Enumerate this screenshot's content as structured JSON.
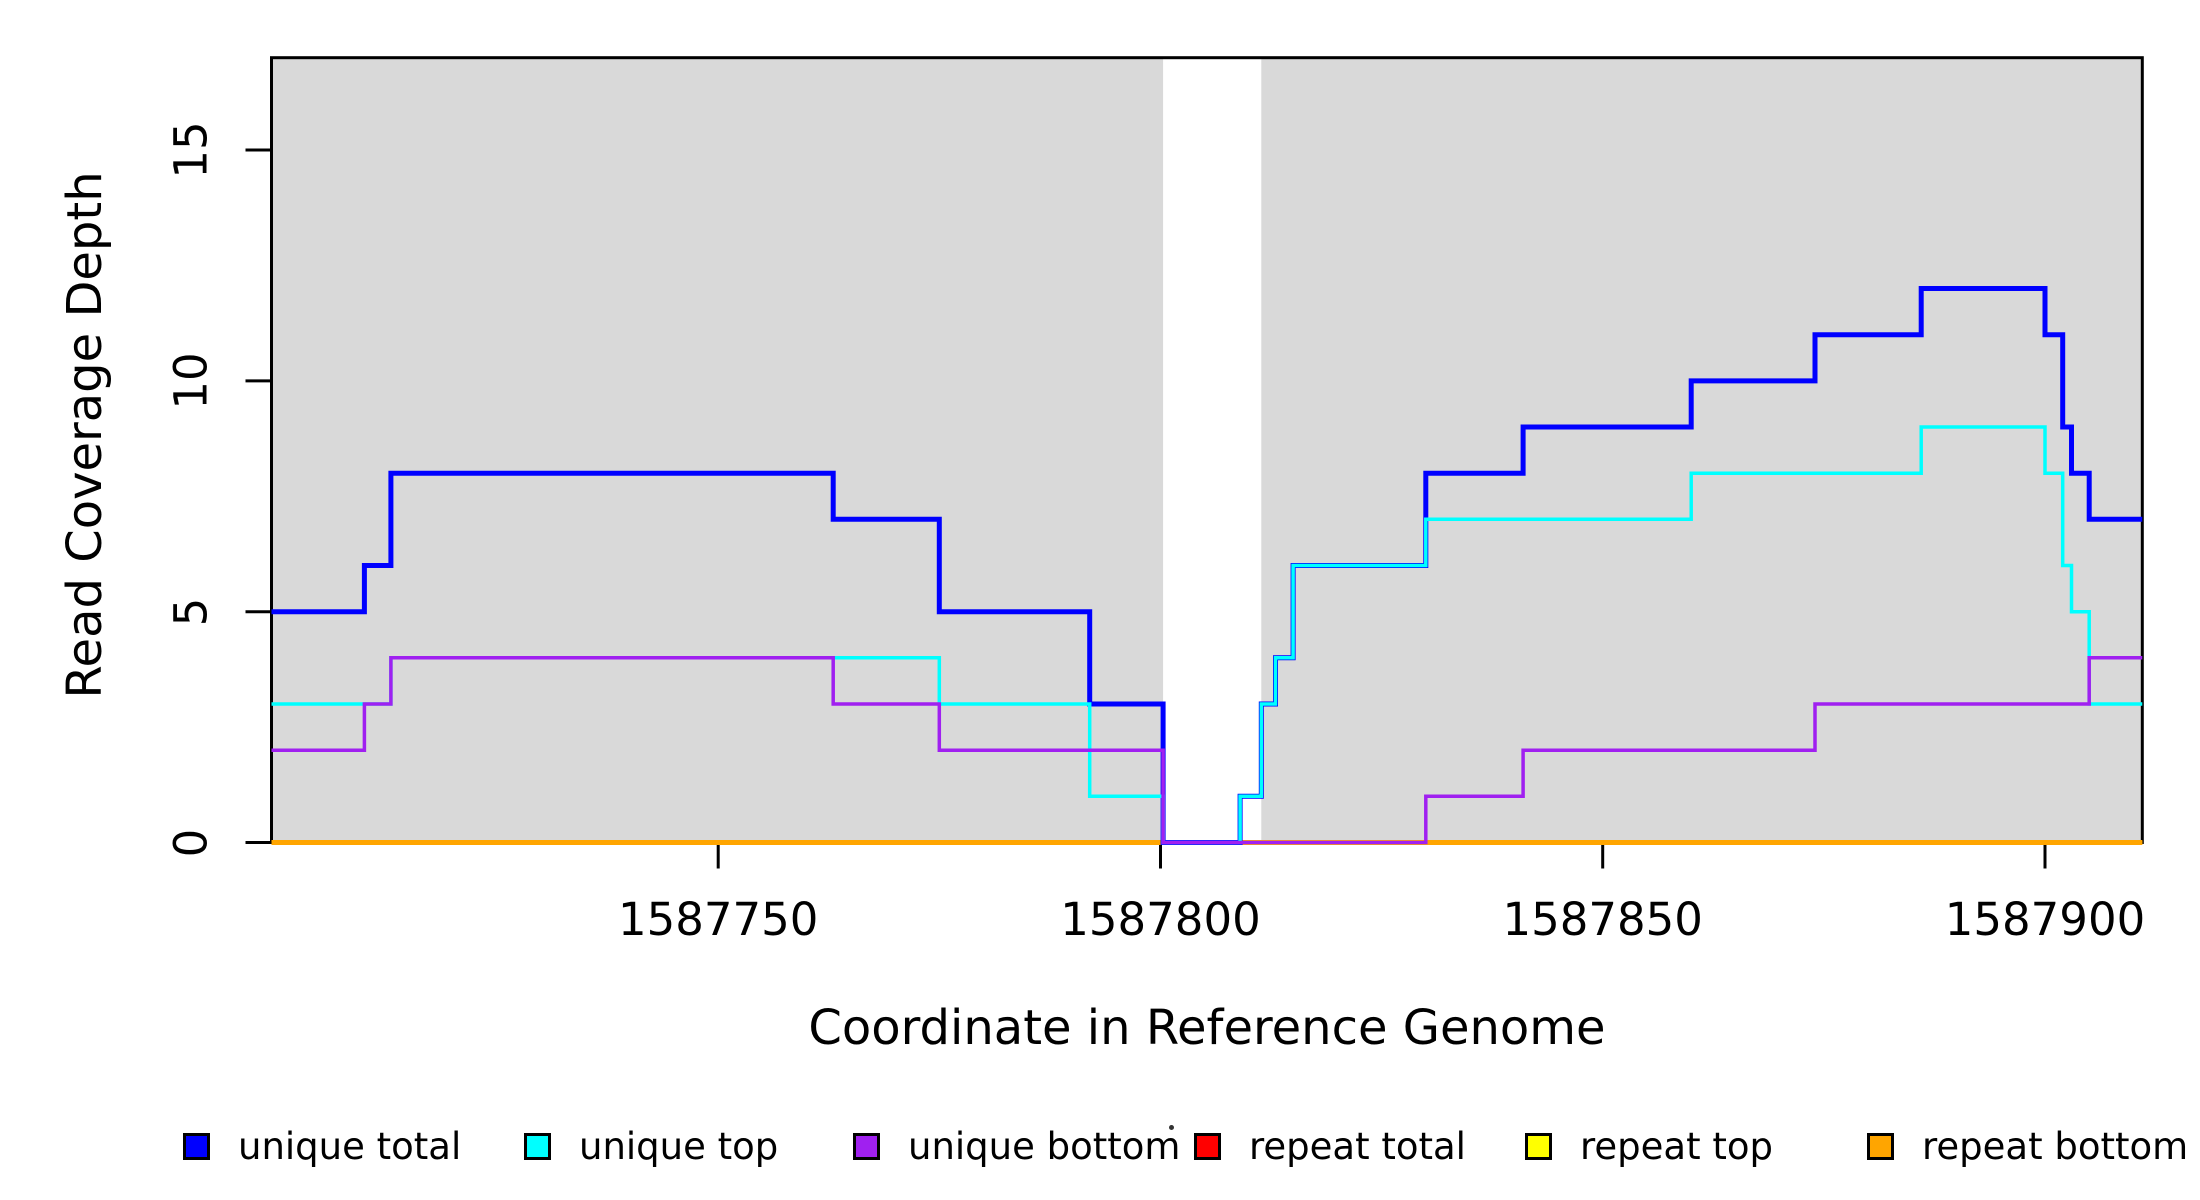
{
  "chart_data": {
    "type": "step",
    "title": "",
    "xlabel": "Coordinate in Reference Genome",
    "ylabel": "Read Coverage Depth",
    "xlim": [
      1587699.5,
      1587911
    ],
    "ylim": [
      0,
      17
    ],
    "grid": false,
    "xticks": [
      {
        "value": 1587750,
        "label": "1587750"
      },
      {
        "value": 1587800,
        "label": "1587800"
      },
      {
        "value": 1587850,
        "label": "1587850"
      },
      {
        "value": 1587900,
        "label": "1587900"
      }
    ],
    "yticks": [
      {
        "value": 0,
        "label": "0"
      },
      {
        "value": 5,
        "label": "5"
      },
      {
        "value": 10,
        "label": "10"
      },
      {
        "value": 15,
        "label": "15"
      }
    ],
    "shaded_regions": [
      {
        "x0": 1587699.5,
        "x1": 1587800.3,
        "color": "#D9D9D9"
      },
      {
        "x0": 1587811.4,
        "x1": 1587911.0,
        "color": "#D9D9D9"
      }
    ],
    "series": [
      {
        "name": "repeat total",
        "color": "#FF0000",
        "line_width": 3.5,
        "steps": [
          [
            1587699.5,
            0
          ]
        ]
      },
      {
        "name": "repeat top",
        "color": "#FFFF00",
        "line_width": 3.5,
        "steps": [
          [
            1587699.5,
            0
          ]
        ]
      },
      {
        "name": "repeat bottom",
        "color": "#FFA500",
        "line_width": 5,
        "steps": [
          [
            1587699.5,
            0
          ]
        ]
      },
      {
        "name": "unique total",
        "color": "#0000FF",
        "line_width": 5,
        "steps": [
          [
            1587699.5,
            5
          ],
          [
            1587710,
            6
          ],
          [
            1587713,
            8
          ],
          [
            1587763,
            7
          ],
          [
            1587775,
            5
          ],
          [
            1587792,
            3
          ],
          [
            1587800.3,
            0
          ],
          [
            1587809,
            1
          ],
          [
            1587811.4,
            3
          ],
          [
            1587813,
            4
          ],
          [
            1587815,
            6
          ],
          [
            1587830,
            8
          ],
          [
            1587841,
            9
          ],
          [
            1587860,
            10
          ],
          [
            1587874,
            11
          ],
          [
            1587886,
            12
          ],
          [
            1587900,
            11
          ],
          [
            1587902,
            9
          ],
          [
            1587903,
            8
          ],
          [
            1587905,
            7
          ]
        ]
      },
      {
        "name": "unique top",
        "color": "#00FFFF",
        "line_width": 3.5,
        "steps": [
          [
            1587699.5,
            3
          ],
          [
            1587713,
            4
          ],
          [
            1587775,
            3
          ],
          [
            1587792,
            1
          ],
          [
            1587800.3,
            0
          ],
          [
            1587809,
            1
          ],
          [
            1587811.4,
            3
          ],
          [
            1587813,
            4
          ],
          [
            1587815,
            6
          ],
          [
            1587830,
            7
          ],
          [
            1587860,
            8
          ],
          [
            1587886,
            9
          ],
          [
            1587900,
            8
          ],
          [
            1587902,
            6
          ],
          [
            1587903,
            5
          ],
          [
            1587905,
            3
          ]
        ]
      },
      {
        "name": "unique bottom",
        "color": "#A020F0",
        "line_width": 3.5,
        "steps": [
          [
            1587699.5,
            2
          ],
          [
            1587710,
            3
          ],
          [
            1587713,
            4
          ],
          [
            1587763,
            3
          ],
          [
            1587775,
            2
          ],
          [
            1587800.3,
            0
          ],
          [
            1587830,
            1
          ],
          [
            1587841,
            2
          ],
          [
            1587874,
            3
          ],
          [
            1587905,
            4
          ]
        ]
      }
    ],
    "legend_position": "bottom"
  },
  "legend": {
    "items": [
      {
        "label": "unique total",
        "color": "#0000FF"
      },
      {
        "label": "unique top",
        "color": "#00FFFF"
      },
      {
        "label": "unique bottom",
        "color": "#A020F0"
      },
      {
        "label": "repeat total",
        "color": "#FF0000"
      },
      {
        "label": "repeat top",
        "color": "#FFFF00"
      },
      {
        "label": "repeat bottom",
        "color": "#FFA500"
      }
    ]
  }
}
